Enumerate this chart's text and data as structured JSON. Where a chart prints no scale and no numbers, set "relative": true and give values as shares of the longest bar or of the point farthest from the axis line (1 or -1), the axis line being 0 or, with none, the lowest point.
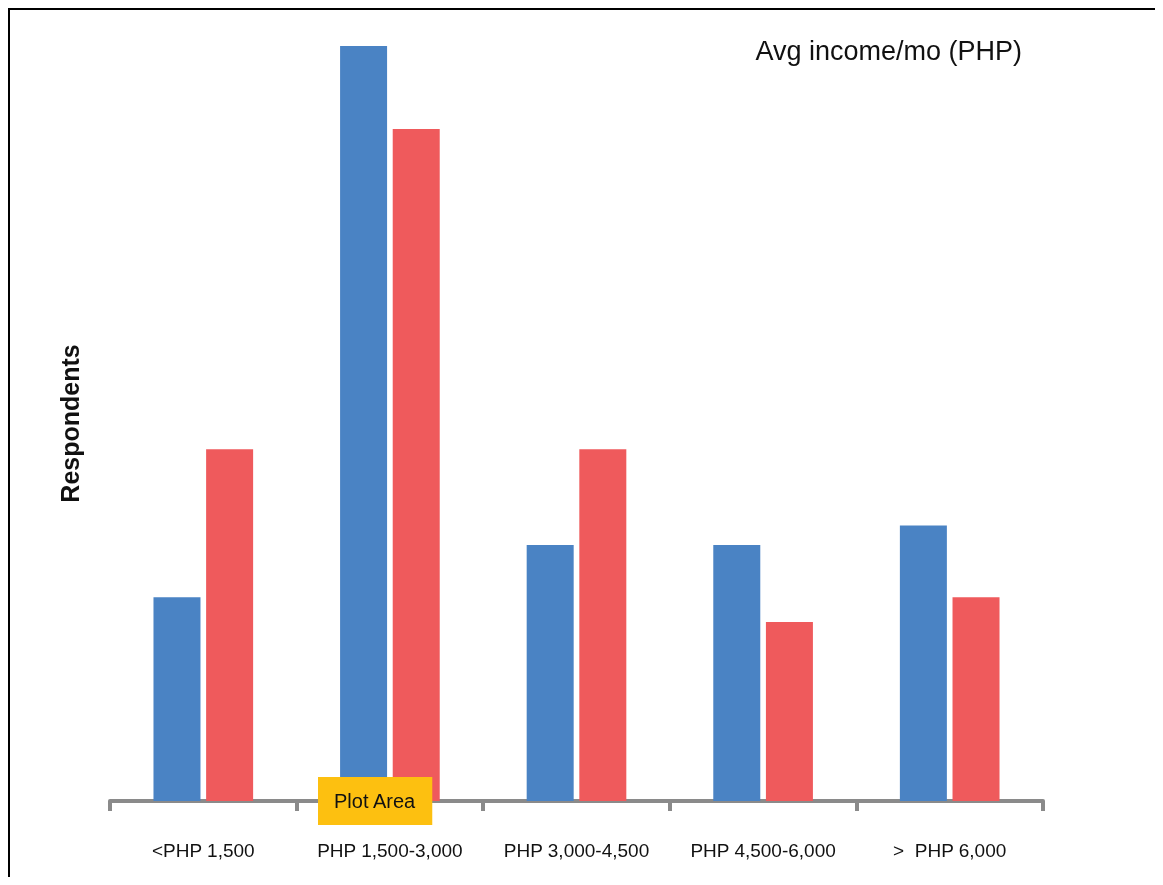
{
  "chart_data": {
    "type": "bar",
    "title": "Avg income/mo (PHP)",
    "ylabel": "Respondents",
    "relative": true,
    "categories": [
      "<PHP 1,500",
      "PHP 1,500-3,000",
      "PHP 3,000-4,500",
      "PHP 4,500-6,000",
      ">  PHP 6,000"
    ],
    "series": [
      {
        "color": "#4a83c4",
        "values": [
          0.27,
          1,
          0.339,
          0.339,
          0.365
        ]
      },
      {
        "color": "#ef5a5c",
        "values": [
          0.466,
          0.89,
          0.466,
          0.237,
          0.27
        ]
      }
    ],
    "annotations": [
      "Plot Area"
    ],
    "grid": false
  }
}
